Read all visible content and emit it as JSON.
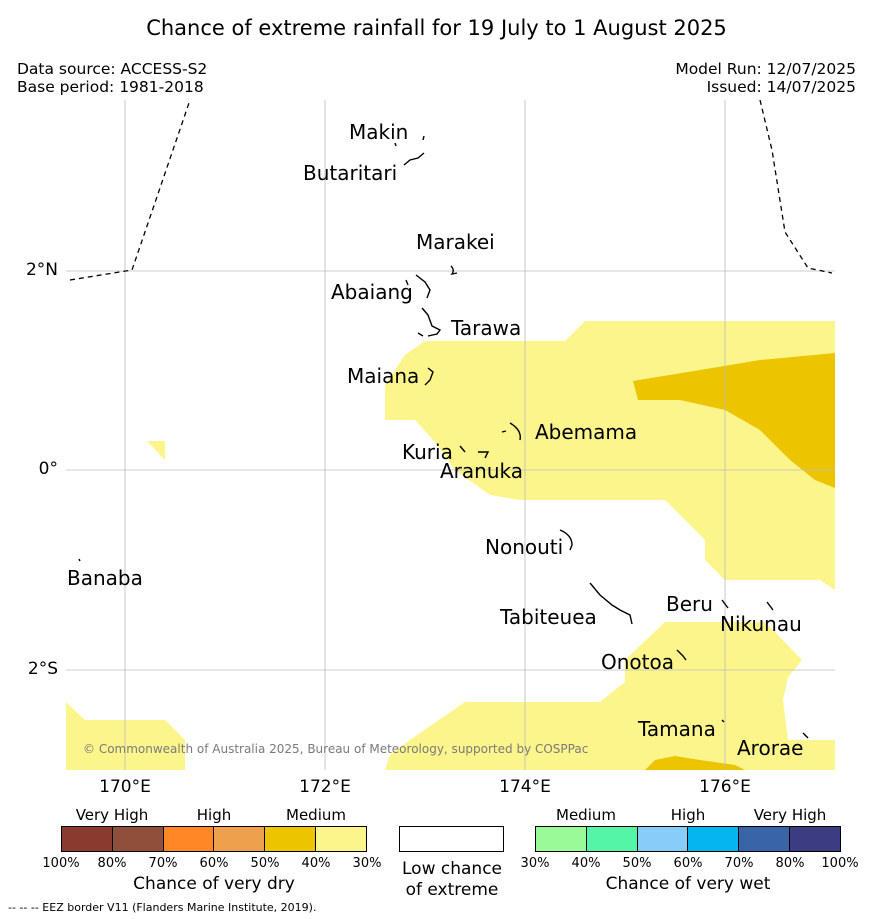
{
  "title": "Chance of extreme rainfall for 19 July to 1 August 2025",
  "meta": {
    "data_source": "Data source: ACCESS-S2",
    "base_period": "Base period: 1981-2018",
    "model_run": "Model Run: 12/07/2025",
    "issued": "Issued: 14/07/2025"
  },
  "axes": {
    "lon_labels": [
      "170°E",
      "172°E",
      "174°E",
      "176°E"
    ],
    "lat_labels": [
      "2°N",
      "0°",
      "2°S"
    ]
  },
  "places": [
    {
      "name": "Makin"
    },
    {
      "name": "Butaritari"
    },
    {
      "name": "Marakei"
    },
    {
      "name": "Abaiang"
    },
    {
      "name": "Tarawa"
    },
    {
      "name": "Maiana"
    },
    {
      "name": "Abemama"
    },
    {
      "name": "Kuria"
    },
    {
      "name": "Aranuka"
    },
    {
      "name": "Nonouti"
    },
    {
      "name": "Banaba"
    },
    {
      "name": "Tabiteuea"
    },
    {
      "name": "Beru"
    },
    {
      "name": "Nikunau"
    },
    {
      "name": "Onotoa"
    },
    {
      "name": "Tamana"
    },
    {
      "name": "Arorae"
    }
  ],
  "copyright": "© Commonwealth of Australia 2025, Bureau of Meteorology, supported by COSPPac",
  "legend": {
    "dry": {
      "groups": [
        "Very High",
        "High",
        "Medium"
      ],
      "colors": [
        "#8b3a2f",
        "#8f4f3a",
        "#ff8726",
        "#eea04c",
        "#ecc500",
        "#fcf58b"
      ],
      "percents": [
        "100%",
        "80%",
        "70%",
        "60%",
        "50%",
        "40%",
        "30%"
      ],
      "title": "Chance of very dry"
    },
    "low": {
      "color": "#ffffff",
      "title_line1": "Low chance",
      "title_line2": "of extreme"
    },
    "wet": {
      "groups": [
        "Medium",
        "High",
        "Very High"
      ],
      "colors": [
        "#98fb98",
        "#55f5a8",
        "#88ccfa",
        "#05b5f0",
        "#3a64a8",
        "#3c3c82"
      ],
      "percents": [
        "30%",
        "40%",
        "50%",
        "60%",
        "70%",
        "80%",
        "100%"
      ],
      "title": "Chance of very wet"
    }
  },
  "map_colors": {
    "dry_30_40": "#fcf58b",
    "dry_40_50": "#ecc500"
  },
  "footnote": "--  --  -- EEZ border V11 (Flanders Marine Institute, 2019)."
}
